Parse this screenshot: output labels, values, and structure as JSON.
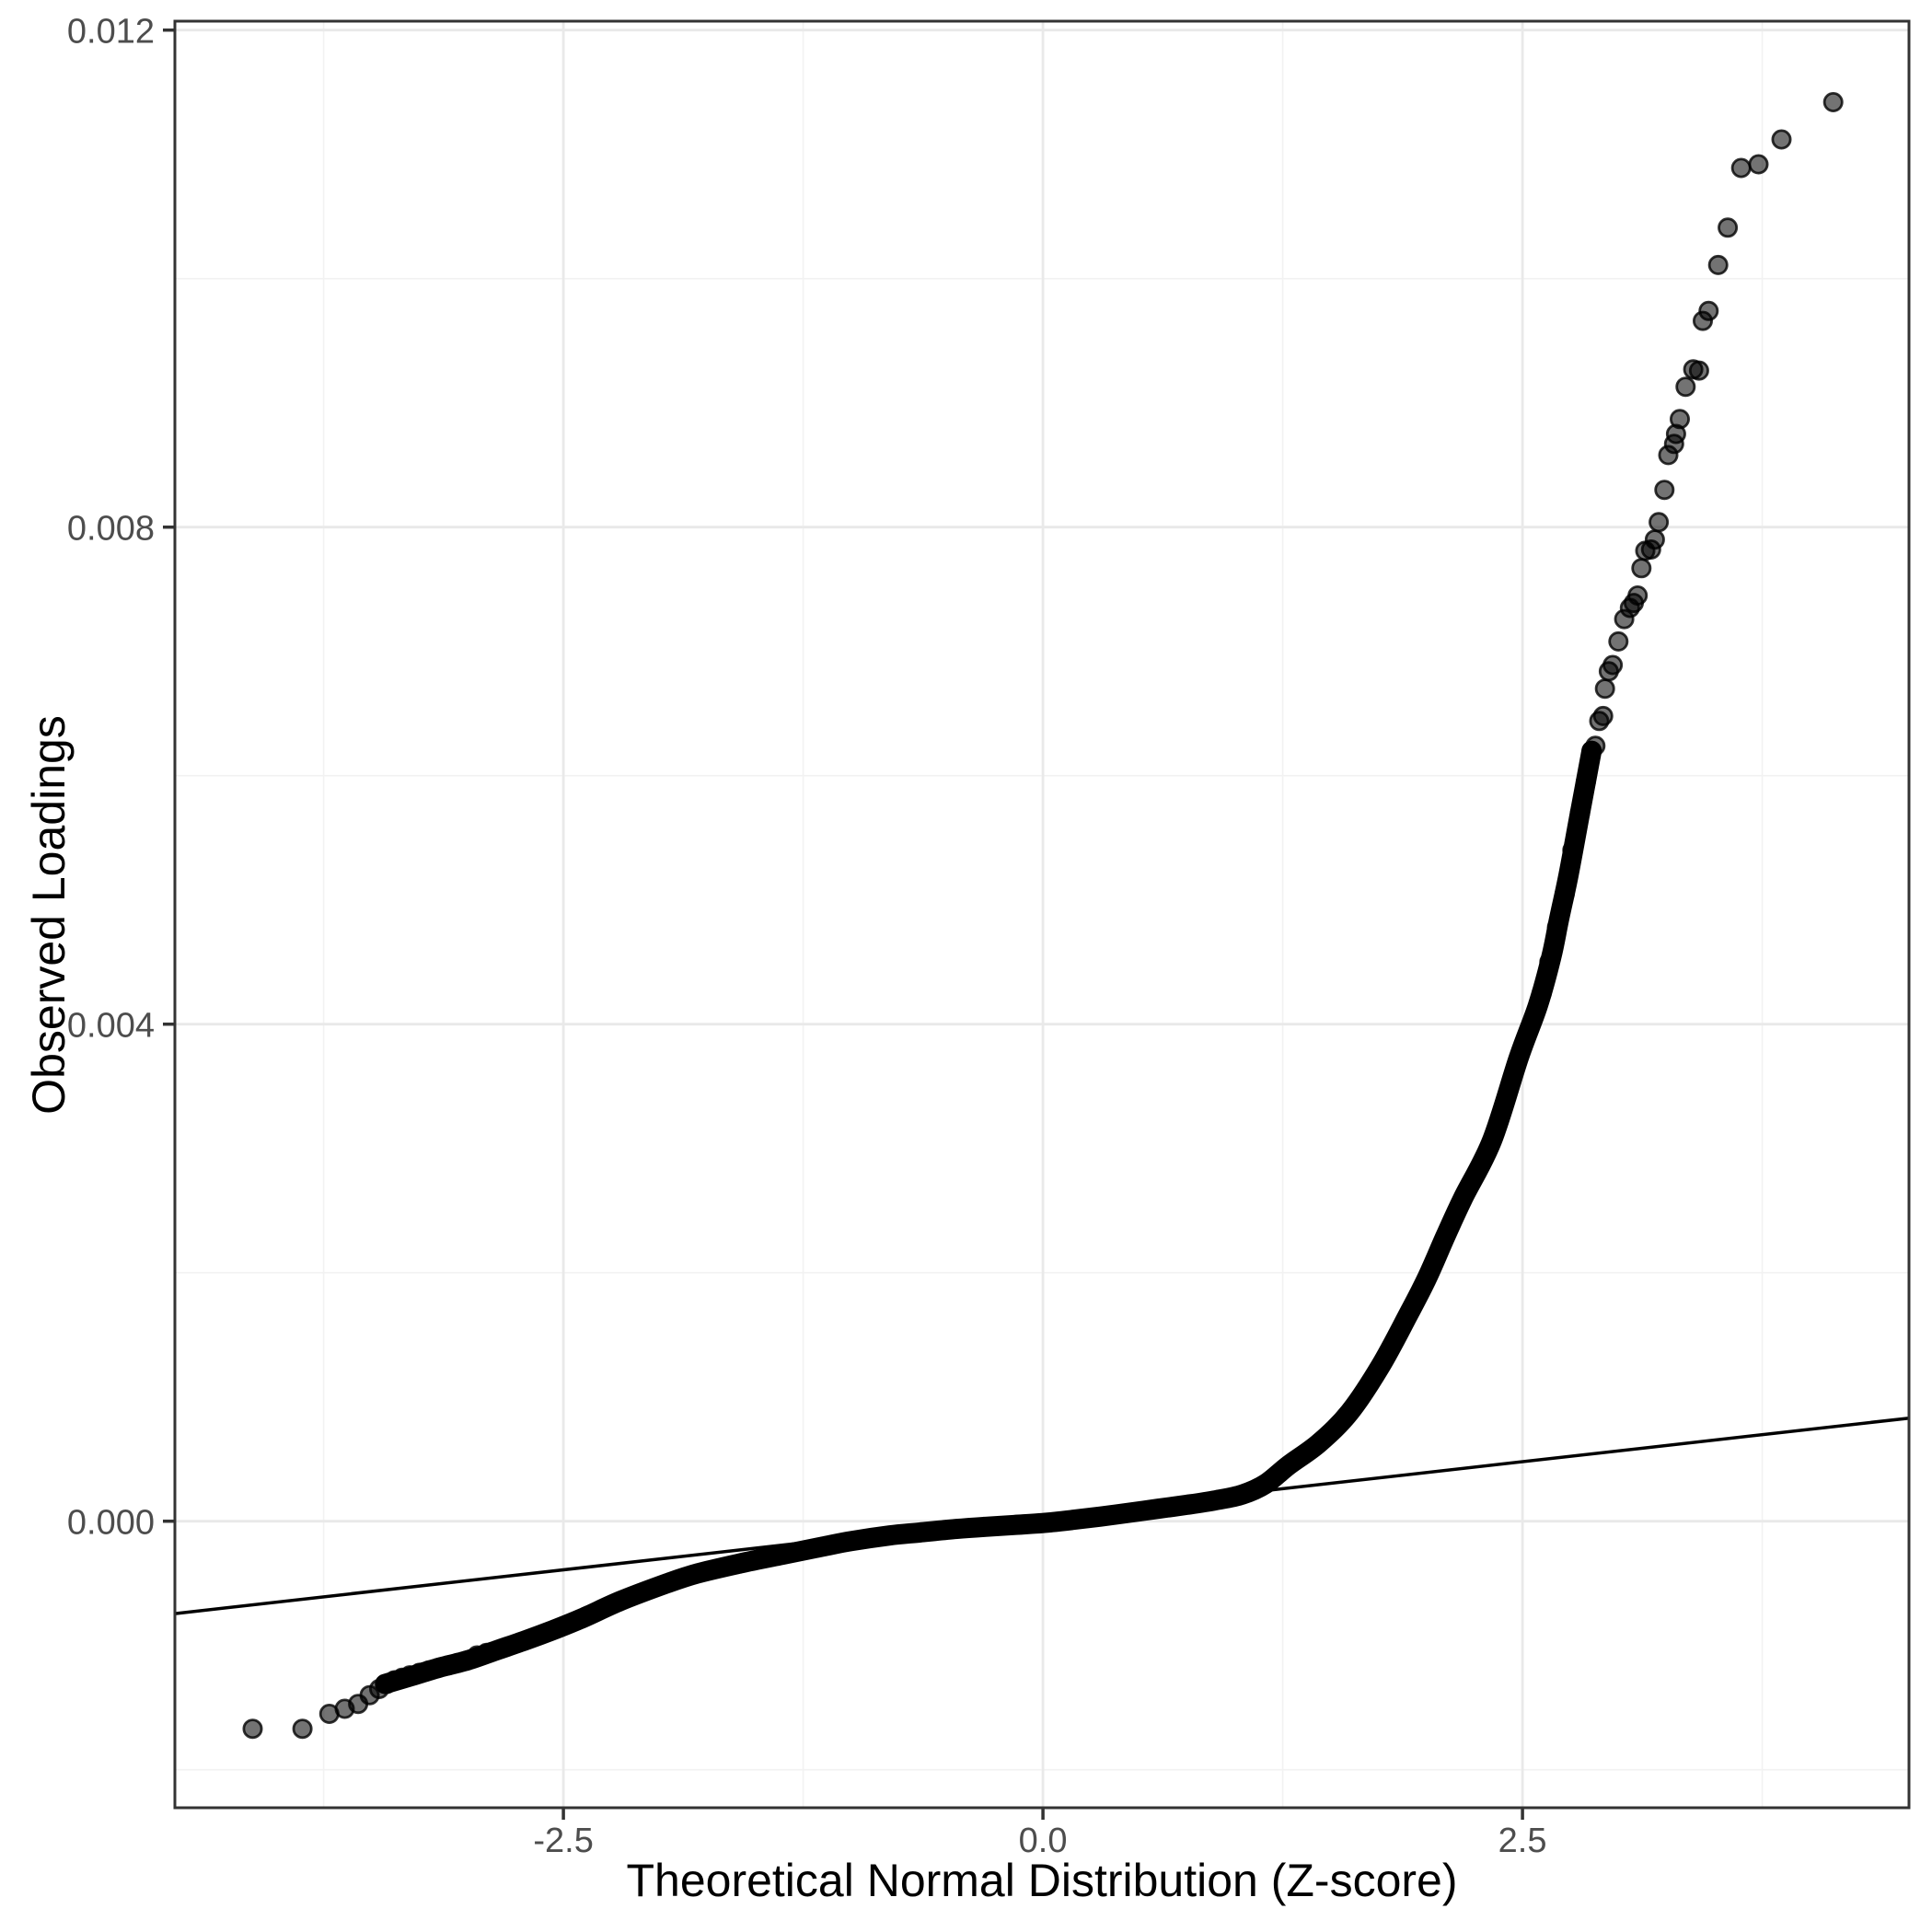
{
  "figure": {
    "kind": "qq-plot"
  },
  "axes": {
    "x": {
      "title": "Theoretical Normal Distribution (Z-score)",
      "ticks": [
        {
          "value": -2.5,
          "label": "-2.5"
        },
        {
          "value": 0.0,
          "label": "0.0"
        },
        {
          "value": 2.5,
          "label": "2.5"
        }
      ],
      "minor_ticks": [
        -3.75,
        -1.25,
        1.25,
        3.75
      ],
      "range": [
        -4.525,
        4.515
      ]
    },
    "y": {
      "title": "Observed Loadings",
      "ticks": [
        {
          "value": 0.0,
          "label": "0.000"
        },
        {
          "value": 0.004,
          "label": "0.004"
        },
        {
          "value": 0.008,
          "label": "0.008"
        },
        {
          "value": 0.012,
          "label": "0.012"
        }
      ],
      "minor_ticks": [
        -0.002,
        0.002,
        0.006,
        0.01
      ],
      "range": [
        -0.002304,
        0.012074
      ]
    }
  },
  "chart_data": {
    "type": "scatter",
    "subtype": "qq-plot",
    "title": "",
    "xlabel": "Theoretical Normal Distribution (Z-score)",
    "ylabel": "Observed Loadings",
    "xlim": [
      -4.525,
      4.515
    ],
    "ylim": [
      -0.002304,
      0.012074
    ],
    "grid": "on",
    "legend": "none",
    "reference_line": {
      "slope": 0.000174,
      "intercept": 4.4e-05
    },
    "dense_curve_points": [
      [
        -3.43,
        -0.00131
      ],
      [
        -3.3,
        -0.00125
      ],
      [
        -3.15,
        -0.00118
      ],
      [
        -3.0,
        -0.00112
      ],
      [
        -2.85,
        -0.00104
      ],
      [
        -2.7,
        -0.00096
      ],
      [
        -2.56,
        -0.00088
      ],
      [
        -2.4,
        -0.00078
      ],
      [
        -2.2,
        -0.00064
      ],
      [
        -1.96,
        -0.0005
      ],
      [
        -1.8,
        -0.00042
      ],
      [
        -1.58,
        -0.00034
      ],
      [
        -1.36,
        -0.00027
      ],
      [
        -1.15,
        -0.000205
      ],
      [
        -1.0,
        -0.00016
      ],
      [
        -0.8,
        -0.000115
      ],
      [
        -0.64,
        -9e-05
      ],
      [
        -0.45,
        -6.2e-05
      ],
      [
        -0.3,
        -4.5e-05
      ],
      [
        -0.15,
        -3e-05
      ],
      [
        0.0,
        -1.5e-05
      ],
      [
        0.15,
        1e-05
      ],
      [
        0.3,
        3.7e-05
      ],
      [
        0.45,
        6.8e-05
      ],
      [
        0.6,
        0.0001
      ],
      [
        0.75,
        0.000132
      ],
      [
        0.9,
        0.000168
      ],
      [
        1.04,
        0.000215
      ],
      [
        1.16,
        0.0003
      ],
      [
        1.28,
        0.00045
      ],
      [
        1.44,
        0.00063
      ],
      [
        1.6,
        0.00088
      ],
      [
        1.76,
        0.00125
      ],
      [
        1.9,
        0.00165
      ],
      [
        2.0,
        0.00195
      ],
      [
        2.1,
        0.0023
      ],
      [
        2.19,
        0.0026
      ],
      [
        2.34,
        0.00306
      ],
      [
        2.48,
        0.00373
      ],
      [
        2.58,
        0.00415
      ],
      [
        2.65,
        0.00454
      ],
      [
        2.69,
        0.00484
      ],
      [
        2.74,
        0.0052
      ],
      [
        2.8,
        0.0057
      ],
      [
        2.86,
        0.0062
      ]
    ],
    "lower_tail_points": [
      [
        -4.12,
        -0.00167
      ],
      [
        -3.86,
        -0.00167
      ],
      [
        -3.72,
        -0.00155
      ],
      [
        -3.64,
        -0.00151
      ],
      [
        -3.57,
        -0.00147
      ],
      [
        -3.51,
        -0.0014
      ],
      [
        -3.46,
        -0.00135
      ],
      [
        -3.42,
        -0.00131
      ],
      [
        -3.38,
        -0.00128
      ],
      [
        -3.34,
        -0.00126
      ],
      [
        -3.3,
        -0.00124
      ],
      [
        -3.25,
        -0.00122
      ],
      [
        -3.2,
        -0.0012
      ],
      [
        -3.15,
        -0.00118
      ],
      [
        -3.1,
        -0.00116
      ],
      [
        -3.05,
        -0.00114
      ],
      [
        -3.0,
        -0.00112
      ],
      [
        -2.95,
        -0.00108
      ],
      [
        -2.9,
        -0.00106
      ]
    ],
    "upper_tail_points": [
      [
        2.6,
        0.00425
      ],
      [
        2.64,
        0.0045
      ],
      [
        2.68,
        0.00478
      ],
      [
        2.72,
        0.00505
      ],
      [
        2.76,
        0.0054
      ],
      [
        2.8,
        0.0057
      ],
      [
        2.83,
        0.00595
      ],
      [
        2.86,
        0.0062
      ],
      [
        2.88,
        0.00624
      ],
      [
        2.9,
        0.00644
      ],
      [
        2.92,
        0.00648
      ],
      [
        2.93,
        0.0067
      ],
      [
        2.95,
        0.00684
      ],
      [
        2.97,
        0.00689
      ],
      [
        3.0,
        0.00708
      ],
      [
        3.03,
        0.00726
      ],
      [
        3.06,
        0.00735
      ],
      [
        3.08,
        0.00739
      ],
      [
        3.1,
        0.00745
      ],
      [
        3.12,
        0.00767
      ],
      [
        3.14,
        0.00781
      ],
      [
        3.17,
        0.00782
      ],
      [
        3.19,
        0.0079
      ],
      [
        3.21,
        0.00804
      ],
      [
        3.24,
        0.0083
      ],
      [
        3.26,
        0.00858
      ],
      [
        3.29,
        0.00867
      ],
      [
        3.3,
        0.00875
      ],
      [
        3.32,
        0.00887
      ],
      [
        3.35,
        0.00913
      ],
      [
        3.39,
        0.00927
      ],
      [
        3.42,
        0.00926
      ],
      [
        3.44,
        0.00966
      ],
      [
        3.47,
        0.00974
      ],
      [
        3.52,
        0.01011
      ],
      [
        3.57,
        0.01041
      ],
      [
        3.64,
        0.01089
      ],
      [
        3.73,
        0.01092
      ],
      [
        3.85,
        0.01112
      ],
      [
        4.12,
        0.01142
      ]
    ]
  },
  "colors": {
    "background": "#FFFFFF",
    "panel_background": "#FFFFFF",
    "grid_major": "#E9E9E9",
    "grid_minor": "#F2F2F2",
    "panel_border": "#333333",
    "tick_mark": "#333333",
    "tick_label": "#4D4D4D",
    "axis_title": "#000000",
    "point": "#000000",
    "reference_line": "#000000"
  }
}
